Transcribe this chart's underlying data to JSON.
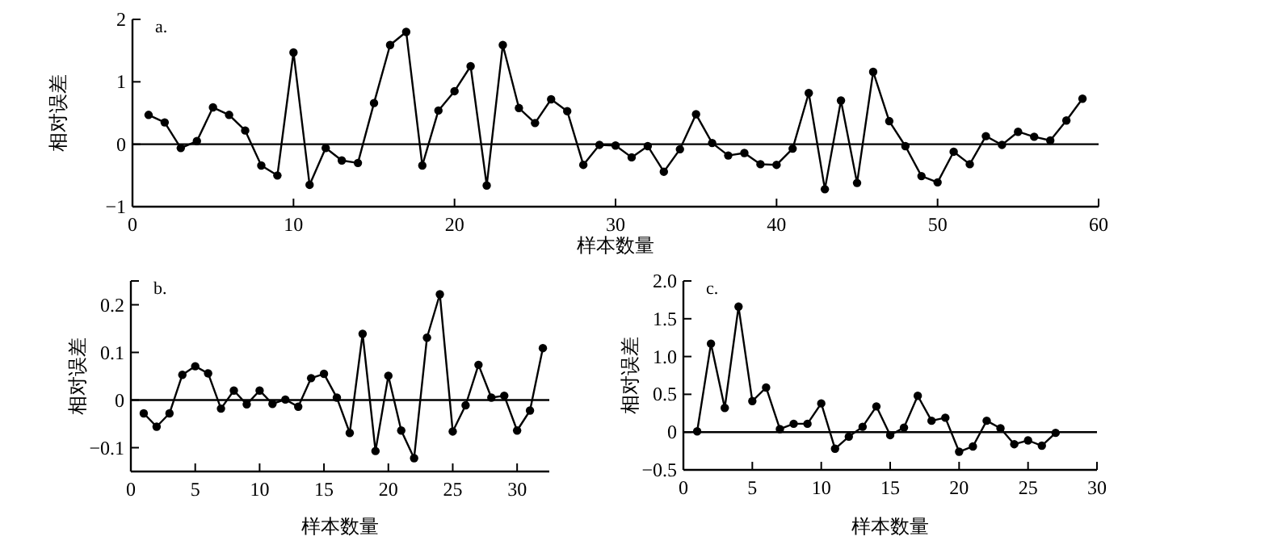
{
  "chart_data": [
    {
      "type": "line",
      "title": "a.",
      "xlabel": "样本数量",
      "ylabel": "相对误差",
      "marker": "circle",
      "x": [
        1,
        2,
        3,
        4,
        5,
        6,
        7,
        8,
        9,
        10,
        11,
        12,
        13,
        14,
        15,
        16,
        17,
        18,
        19,
        20,
        21,
        22,
        23,
        24,
        25,
        26,
        27,
        28,
        29,
        30,
        31,
        32,
        33,
        34,
        35,
        36,
        37,
        38,
        39,
        40,
        41,
        42,
        43,
        44,
        45,
        46,
        47,
        48,
        49,
        50,
        51,
        52,
        53,
        54,
        55,
        56,
        57,
        58,
        59
      ],
      "series": [
        {
          "color": "#000000",
          "values": [
            0.47,
            0.35,
            -0.06,
            0.05,
            0.59,
            0.47,
            0.22,
            -0.34,
            -0.5,
            1.47,
            -0.65,
            -0.06,
            -0.26,
            -0.3,
            0.66,
            1.59,
            1.8,
            -0.34,
            0.54,
            0.85,
            1.25,
            -0.66,
            1.59,
            0.58,
            0.34,
            0.72,
            0.53,
            -0.33,
            -0.01,
            -0.02,
            -0.21,
            -0.03,
            -0.44,
            -0.08,
            0.48,
            0.02,
            -0.18,
            -0.14,
            -0.32,
            -0.33,
            -0.07,
            0.82,
            -0.72,
            0.7,
            -0.62,
            1.16,
            0.37,
            -0.03,
            -0.51,
            -0.61,
            -0.12,
            -0.32,
            0.13,
            -0.01,
            0.2,
            0.12,
            0.06,
            0.38,
            0.73
          ]
        }
      ],
      "xlim": [
        0,
        60
      ],
      "ylim": [
        -1,
        2
      ],
      "xticks": [
        0,
        10,
        20,
        30,
        40,
        50,
        60
      ],
      "yticks": [
        {
          "value": -1,
          "label": "−1"
        },
        0,
        1,
        2
      ],
      "ref_lines": [
        {
          "axis": "y",
          "value": 0
        }
      ]
    },
    {
      "type": "line",
      "title": "b.",
      "xlabel": "样本数量",
      "ylabel": "相对误差",
      "marker": "circle",
      "x": [
        1,
        2,
        3,
        4,
        5,
        6,
        7,
        8,
        9,
        10,
        11,
        12,
        13,
        14,
        15,
        16,
        17,
        18,
        19,
        20,
        21,
        22,
        23,
        24,
        25,
        26,
        27,
        28,
        29,
        30,
        31,
        32
      ],
      "series": [
        {
          "color": "#000000",
          "values": [
            -0.028,
            -0.056,
            -0.028,
            0.053,
            0.071,
            0.056,
            -0.018,
            0.02,
            -0.009,
            0.02,
            -0.008,
            0.001,
            -0.014,
            0.046,
            0.055,
            0.005,
            -0.069,
            0.139,
            -0.107,
            0.051,
            -0.064,
            -0.122,
            0.131,
            0.222,
            -0.066,
            -0.011,
            0.074,
            0.005,
            0.009,
            -0.064,
            -0.022,
            0.109
          ]
        }
      ],
      "xlim": [
        0,
        32.5
      ],
      "ylim": [
        -0.15,
        0.25
      ],
      "xticks": [
        0,
        5,
        10,
        15,
        20,
        25,
        30
      ],
      "yticks": [
        {
          "value": -0.1,
          "label": "−0.1"
        },
        0,
        0.1,
        0.2,
        {
          "value": 0.25,
          "label": null
        }
      ],
      "ref_lines": [
        {
          "axis": "y",
          "value": 0
        }
      ]
    },
    {
      "type": "line",
      "title": "c.",
      "xlabel": "样本数量",
      "ylabel": "相对误差",
      "marker": "circle",
      "x": [
        1,
        2,
        3,
        4,
        5,
        6,
        7,
        8,
        9,
        10,
        11,
        12,
        13,
        14,
        15,
        16,
        17,
        18,
        19,
        20,
        21,
        22,
        23,
        24,
        25,
        26,
        27
      ],
      "series": [
        {
          "color": "#000000",
          "values": [
            0.01,
            1.17,
            0.32,
            1.66,
            0.41,
            0.59,
            0.04,
            0.11,
            0.11,
            0.38,
            -0.22,
            -0.06,
            0.07,
            0.34,
            -0.04,
            0.06,
            0.48,
            0.15,
            0.19,
            -0.26,
            -0.19,
            0.15,
            0.05,
            -0.16,
            -0.11,
            -0.18,
            -0.01
          ]
        }
      ],
      "xlim": [
        0,
        30
      ],
      "ylim": [
        -0.5,
        2
      ],
      "xticks": [
        0,
        5,
        10,
        15,
        20,
        25,
        30
      ],
      "yticks": [
        {
          "value": -0.5,
          "label": "−0.5"
        },
        0,
        0.5,
        {
          "value": 1,
          "label": "1.0"
        },
        {
          "value": 1.5,
          "label": "1.5"
        },
        {
          "value": 2,
          "label": "2.0"
        }
      ],
      "ref_lines": [
        {
          "axis": "y",
          "value": 0
        }
      ]
    }
  ]
}
